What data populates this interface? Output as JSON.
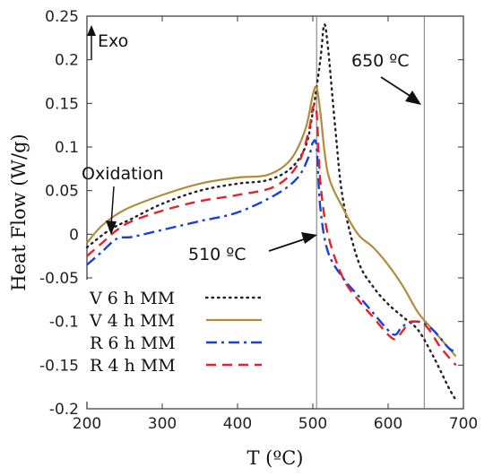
{
  "chart_data": {
    "type": "line",
    "xlabel": "T (ºC)",
    "ylabel": "Heat Flow (W/g)",
    "xlim": [
      200,
      700
    ],
    "ylim": [
      -0.2,
      0.25
    ],
    "xticks": [
      "200",
      "300",
      "400",
      "500",
      "600",
      "700"
    ],
    "yticks": [
      "-0.2",
      "-0.15",
      "-0.1",
      "-0.05",
      "0",
      "0.05",
      "0.1",
      "0.15",
      "0.2",
      "0.25"
    ],
    "grid": false,
    "legend_position": "bottom-left",
    "vlines": [
      505,
      648
    ],
    "annotations": {
      "exo": "Exo",
      "oxidation": "Oxidation",
      "t510": "510 ºC",
      "t650": "650 ºC"
    },
    "series": [
      {
        "name": "V 6 h MM",
        "color": "#222222",
        "dash": "dotted",
        "points": [
          [
            200,
            -0.015
          ],
          [
            230,
            0.005
          ],
          [
            260,
            0.018
          ],
          [
            300,
            0.035
          ],
          [
            350,
            0.05
          ],
          [
            400,
            0.058
          ],
          [
            440,
            0.062
          ],
          [
            470,
            0.075
          ],
          [
            490,
            0.1
          ],
          [
            500,
            0.14
          ],
          [
            510,
            0.2
          ],
          [
            515,
            0.24
          ],
          [
            520,
            0.215
          ],
          [
            530,
            0.12
          ],
          [
            540,
            0.04
          ],
          [
            560,
            -0.03
          ],
          [
            580,
            -0.06
          ],
          [
            600,
            -0.08
          ],
          [
            620,
            -0.095
          ],
          [
            640,
            -0.11
          ],
          [
            660,
            -0.14
          ],
          [
            680,
            -0.175
          ],
          [
            690,
            -0.19
          ]
        ]
      },
      {
        "name": "V 4 h MM",
        "color": "#b08d3a",
        "dash": "solid",
        "points": [
          [
            200,
            -0.01
          ],
          [
            220,
            0.01
          ],
          [
            250,
            0.028
          ],
          [
            300,
            0.045
          ],
          [
            350,
            0.058
          ],
          [
            400,
            0.065
          ],
          [
            440,
            0.068
          ],
          [
            470,
            0.085
          ],
          [
            490,
            0.12
          ],
          [
            500,
            0.16
          ],
          [
            505,
            0.168
          ],
          [
            510,
            0.14
          ],
          [
            520,
            0.07
          ],
          [
            540,
            0.03
          ],
          [
            560,
            0.0
          ],
          [
            580,
            -0.015
          ],
          [
            600,
            -0.035
          ],
          [
            620,
            -0.06
          ],
          [
            640,
            -0.09
          ],
          [
            660,
            -0.11
          ],
          [
            680,
            -0.13
          ],
          [
            690,
            -0.14
          ]
        ]
      },
      {
        "name": "R 6 h MM",
        "color": "#1a3fd6",
        "dash": "dashdot",
        "points": [
          [
            200,
            -0.035
          ],
          [
            220,
            -0.02
          ],
          [
            240,
            -0.005
          ],
          [
            260,
            -0.003
          ],
          [
            300,
            0.005
          ],
          [
            350,
            0.015
          ],
          [
            400,
            0.025
          ],
          [
            450,
            0.045
          ],
          [
            480,
            0.065
          ],
          [
            495,
            0.09
          ],
          [
            500,
            0.105
          ],
          [
            505,
            0.1
          ],
          [
            510,
            0.03
          ],
          [
            520,
            -0.02
          ],
          [
            540,
            -0.05
          ],
          [
            560,
            -0.07
          ],
          [
            580,
            -0.09
          ],
          [
            600,
            -0.11
          ],
          [
            610,
            -0.115
          ],
          [
            620,
            -0.105
          ],
          [
            640,
            -0.1
          ],
          [
            660,
            -0.11
          ],
          [
            680,
            -0.13
          ],
          [
            690,
            -0.135
          ]
        ]
      },
      {
        "name": "R 4 h MM",
        "color": "#e0242a",
        "dash": "dashed",
        "points": [
          [
            200,
            -0.025
          ],
          [
            220,
            -0.01
          ],
          [
            240,
            0.005
          ],
          [
            260,
            0.015
          ],
          [
            300,
            0.027
          ],
          [
            350,
            0.038
          ],
          [
            400,
            0.045
          ],
          [
            450,
            0.055
          ],
          [
            480,
            0.08
          ],
          [
            495,
            0.12
          ],
          [
            500,
            0.145
          ],
          [
            505,
            0.14
          ],
          [
            510,
            0.06
          ],
          [
            520,
            0.0
          ],
          [
            540,
            -0.05
          ],
          [
            560,
            -0.075
          ],
          [
            580,
            -0.095
          ],
          [
            600,
            -0.115
          ],
          [
            610,
            -0.12
          ],
          [
            620,
            -0.11
          ],
          [
            630,
            -0.1
          ],
          [
            650,
            -0.105
          ],
          [
            670,
            -0.13
          ],
          [
            690,
            -0.15
          ]
        ]
      }
    ]
  }
}
